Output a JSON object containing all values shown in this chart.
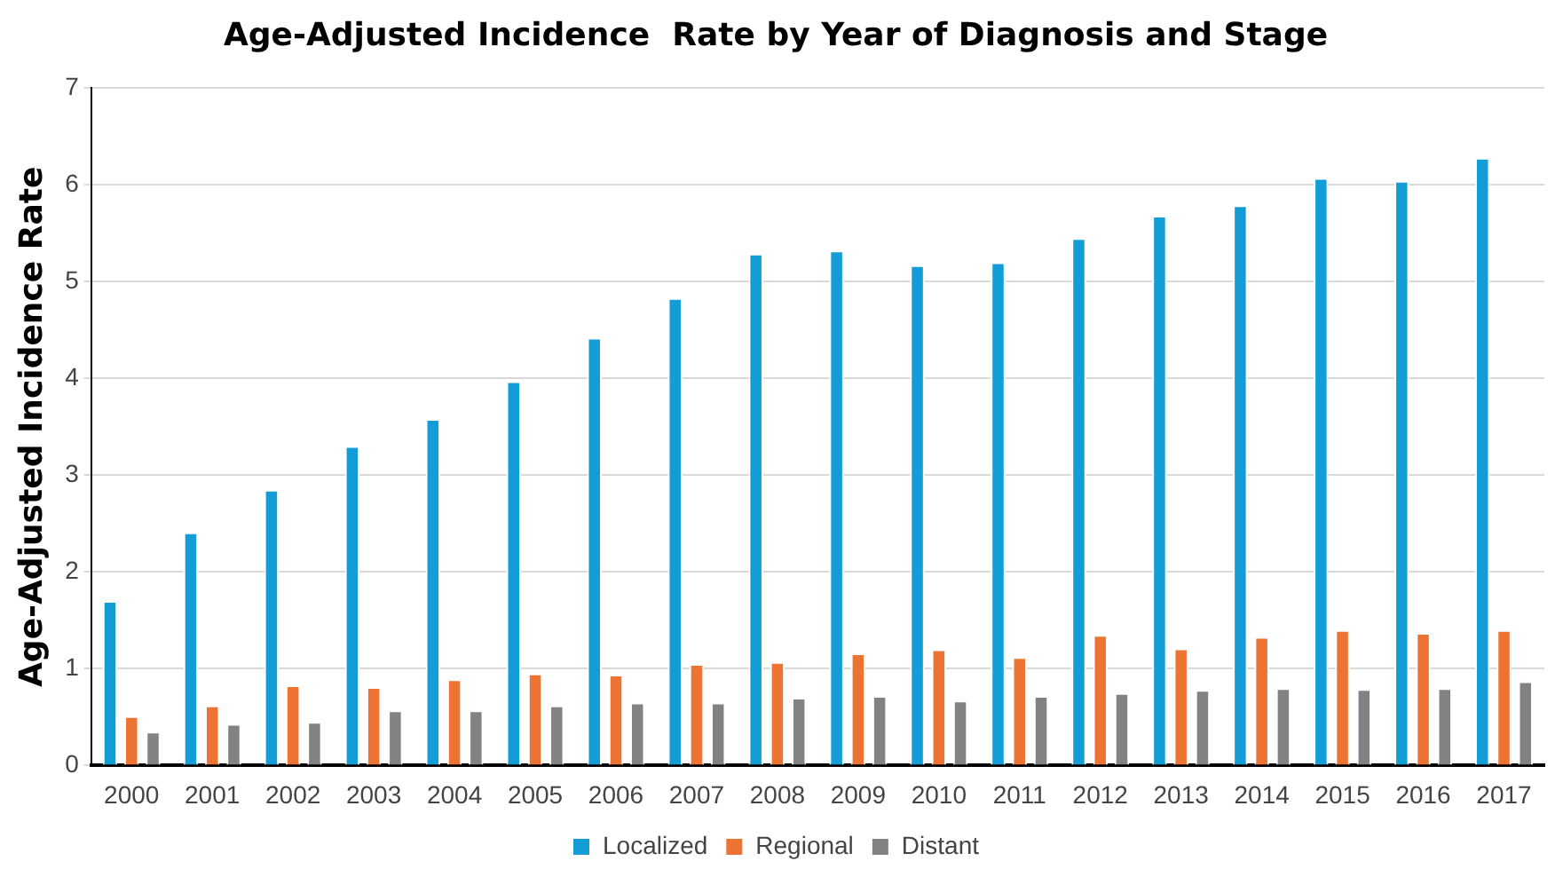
{
  "chart_data": {
    "type": "bar",
    "title": "Age-Adjusted Incidence  Rate by Year of Diagnosis and Stage",
    "ylabel": "Age-Adjusted Incidence Rate",
    "categories": [
      "2000",
      "2001",
      "2002",
      "2003",
      "2004",
      "2005",
      "2006",
      "2007",
      "2008",
      "2009",
      "2010",
      "2011",
      "2012",
      "2013",
      "2014",
      "2015",
      "2016",
      "2017"
    ],
    "series": [
      {
        "name": "Localized",
        "color": "#129dd6",
        "values": [
          1.7,
          2.41,
          2.85,
          3.3,
          3.58,
          3.97,
          4.42,
          4.83,
          5.29,
          5.32,
          5.17,
          5.2,
          5.45,
          5.68,
          5.79,
          6.07,
          6.04,
          6.28
        ]
      },
      {
        "name": "Regional",
        "color": "#ed7333",
        "values": [
          0.51,
          0.62,
          0.83,
          0.81,
          0.89,
          0.95,
          0.94,
          1.05,
          1.07,
          1.16,
          1.2,
          1.12,
          1.35,
          1.21,
          1.33,
          1.4,
          1.37,
          1.4
        ]
      },
      {
        "name": "Distant",
        "color": "#828282",
        "values": [
          0.35,
          0.43,
          0.45,
          0.57,
          0.57,
          0.62,
          0.65,
          0.65,
          0.7,
          0.72,
          0.67,
          0.72,
          0.75,
          0.78,
          0.8,
          0.79,
          0.8,
          0.87
        ]
      }
    ],
    "ylim": [
      0,
      7
    ],
    "yticks": [
      0,
      1,
      2,
      3,
      4,
      5,
      6,
      7
    ],
    "grid": "y",
    "legend": "bottom"
  }
}
